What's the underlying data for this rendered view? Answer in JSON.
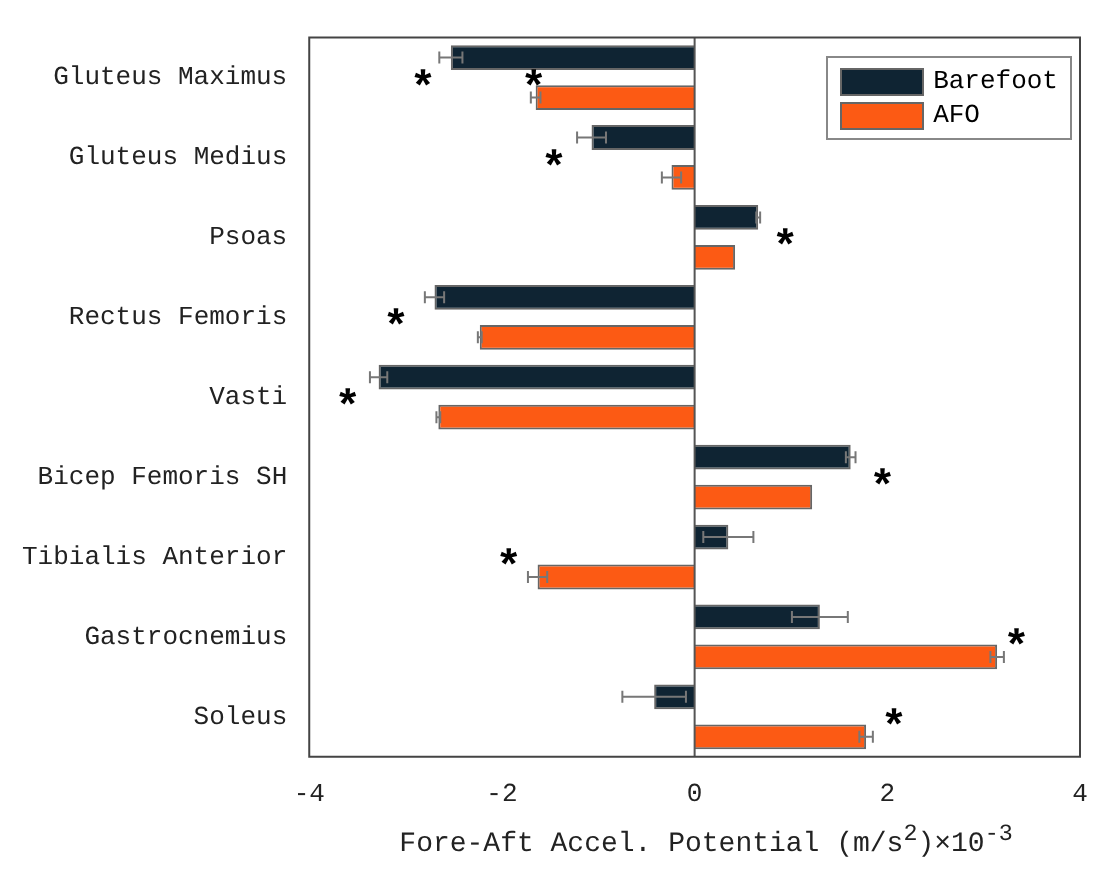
{
  "chart_data": {
    "type": "bar",
    "orientation": "horizontal",
    "xlabel": "Fore-Aft Accel. Potential (m/s$^{2}$)×10$^{-3}$",
    "categories": [
      "Gluteus Maximus",
      "Gluteus Medius",
      "Psoas",
      "Rectus Femoris",
      "Vasti",
      "Bicep Femoris SH",
      "Tibialis Anterior",
      "Gastrocnemius",
      "Soleus"
    ],
    "series": [
      {
        "name": "Barefoot",
        "color": "#0f2433",
        "values": [
          -2.53,
          -1.07,
          0.66,
          -2.7,
          -3.28,
          1.62,
          0.35,
          1.3,
          -0.42
        ],
        "errors": [
          0.12,
          0.15,
          0.02,
          0.1,
          0.09,
          0.05,
          0.26,
          0.29,
          0.33
        ]
      },
      {
        "name": "AFO",
        "color": "#fc5a14",
        "values": [
          -1.65,
          -0.24,
          0.42,
          -2.23,
          -2.66,
          1.22,
          -1.63,
          3.14,
          1.78
        ],
        "errors": [
          0.05,
          0.1,
          null,
          0.02,
          0.02,
          null,
          0.1,
          0.07,
          0.07
        ]
      }
    ],
    "xlim": [
      -4,
      4
    ],
    "xticks": [
      -4,
      -2,
      0,
      2,
      4
    ],
    "legend": "top right",
    "ref_lines": [
      {
        "axis": "x",
        "value": 0,
        "color": "#555555"
      }
    ],
    "annotations": [
      "*",
      "*",
      "*",
      "*",
      "*",
      "*",
      "*",
      "*",
      "*",
      "*"
    ]
  }
}
